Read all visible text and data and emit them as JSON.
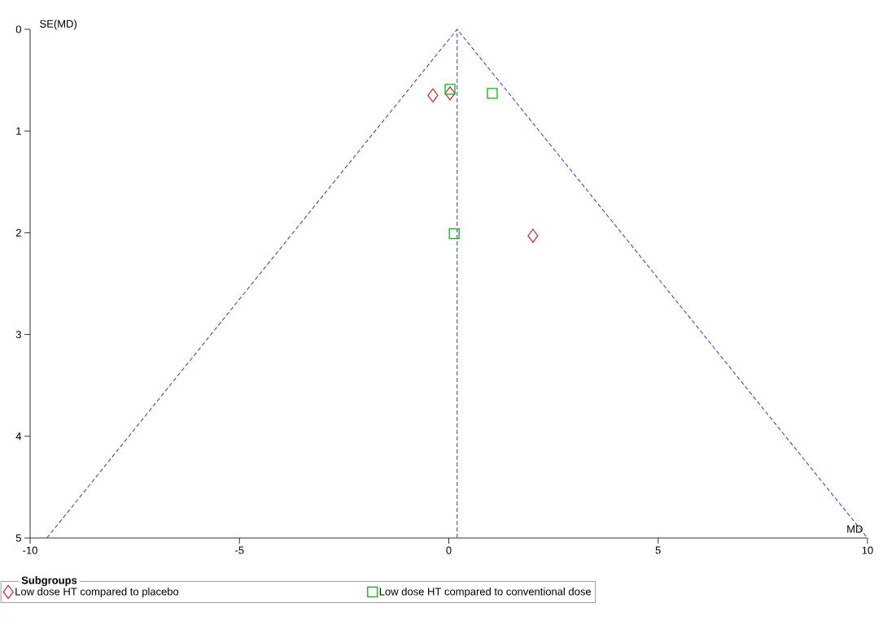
{
  "chart_data": {
    "type": "scatter",
    "xlabel": "MD",
    "ylabel": "SE(MD)",
    "legend_title": "Subgroups",
    "xlim": [
      -10,
      10
    ],
    "ylim": [
      5,
      0
    ],
    "xticks": [
      -10,
      -5,
      0,
      5,
      10
    ],
    "yticks": [
      0,
      1,
      2,
      3,
      4,
      5
    ],
    "grid": false,
    "legend": "bottom",
    "ref_lines": [
      {
        "axis": "x",
        "value": 0.2,
        "color": "#3232e6",
        "line_style": "dashed"
      }
    ],
    "series": [
      {
        "name": "Low dose HT compared to placebo",
        "color": "#cc3333",
        "marker": "diamond",
        "x": [
          -0.38,
          0.03,
          2.01
        ],
        "values": [
          0.65,
          0.63,
          2.03
        ]
      },
      {
        "name": "Low dose HT compared to conventional dose",
        "color": "#00bb00",
        "marker": "square",
        "x": [
          0.03,
          1.04,
          0.13
        ],
        "values": [
          0.59,
          0.63,
          2.01
        ]
      },
      {
        "type": "line",
        "color": "#3232e6",
        "line_style": "dashed",
        "marker": "none",
        "x": [
          -9.6,
          0.2,
          10
        ],
        "values": [
          5,
          0,
          5
        ]
      }
    ]
  }
}
